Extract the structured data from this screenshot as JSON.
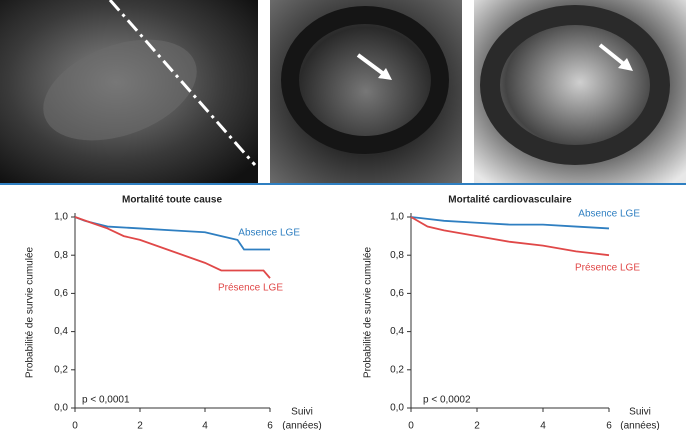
{
  "chart_data": [
    {
      "type": "line",
      "title": "Mortalité toute cause",
      "ylabel": "Probabilité de survie cumulée",
      "xlabel": [
        "Suivi",
        "(années)"
      ],
      "annotation": "p < 0,0001",
      "xlim": [
        0,
        6
      ],
      "xticks": [
        0,
        2,
        4,
        6
      ],
      "ylim": [
        0,
        1
      ],
      "yticks": [
        {
          "value": 0,
          "label": "0,0"
        },
        {
          "value": 0.2,
          "label": "0,2"
        },
        {
          "value": 0.4,
          "label": "0,4"
        },
        {
          "value": 0.6,
          "label": "0,6"
        },
        {
          "value": 0.8,
          "label": "0,8"
        },
        {
          "value": 1,
          "label": "1,0"
        }
      ],
      "series": [
        {
          "name": "Absence LGE",
          "color": "#2f7fc1",
          "x": [
            0,
            0.3,
            1,
            2,
            3,
            4,
            4.5,
            5,
            5.2,
            6
          ],
          "values": [
            1,
            0.98,
            0.95,
            0.94,
            0.93,
            0.92,
            0.9,
            0.88,
            0.83,
            0.83
          ]
        },
        {
          "name": "Présence LGE",
          "color": "#e04848",
          "x": [
            0,
            0.5,
            1,
            1.5,
            2,
            3,
            4,
            4.5,
            5,
            5.8,
            6
          ],
          "values": [
            1,
            0.97,
            0.94,
            0.9,
            0.88,
            0.82,
            0.76,
            0.72,
            0.72,
            0.72,
            0.68
          ]
        }
      ]
    },
    {
      "type": "line",
      "title": "Mortalité cardiovasculaire",
      "ylabel": "Probabilité de survie cumulée",
      "xlabel": [
        "Suivi",
        "(années)"
      ],
      "annotation": "p < 0,0002",
      "xlim": [
        0,
        6
      ],
      "xticks": [
        0,
        2,
        4,
        6
      ],
      "ylim": [
        0,
        1
      ],
      "yticks": [
        {
          "value": 0,
          "label": "0,0"
        },
        {
          "value": 0.2,
          "label": "0,2"
        },
        {
          "value": 0.4,
          "label": "0,4"
        },
        {
          "value": 0.6,
          "label": "0,6"
        },
        {
          "value": 0.8,
          "label": "0,8"
        },
        {
          "value": 1,
          "label": "1,0"
        }
      ],
      "series": [
        {
          "name": "Absence LGE",
          "color": "#2f7fc1",
          "x": [
            0,
            0.5,
            1,
            2,
            3,
            4,
            5,
            6
          ],
          "values": [
            1,
            0.99,
            0.98,
            0.97,
            0.96,
            0.96,
            0.95,
            0.94
          ]
        },
        {
          "name": "Présence LGE",
          "color": "#e04848",
          "x": [
            0,
            0.5,
            1,
            2,
            3,
            4,
            5,
            5.5,
            6
          ],
          "values": [
            1,
            0.95,
            0.93,
            0.9,
            0.87,
            0.85,
            0.82,
            0.81,
            0.8
          ]
        }
      ]
    }
  ]
}
